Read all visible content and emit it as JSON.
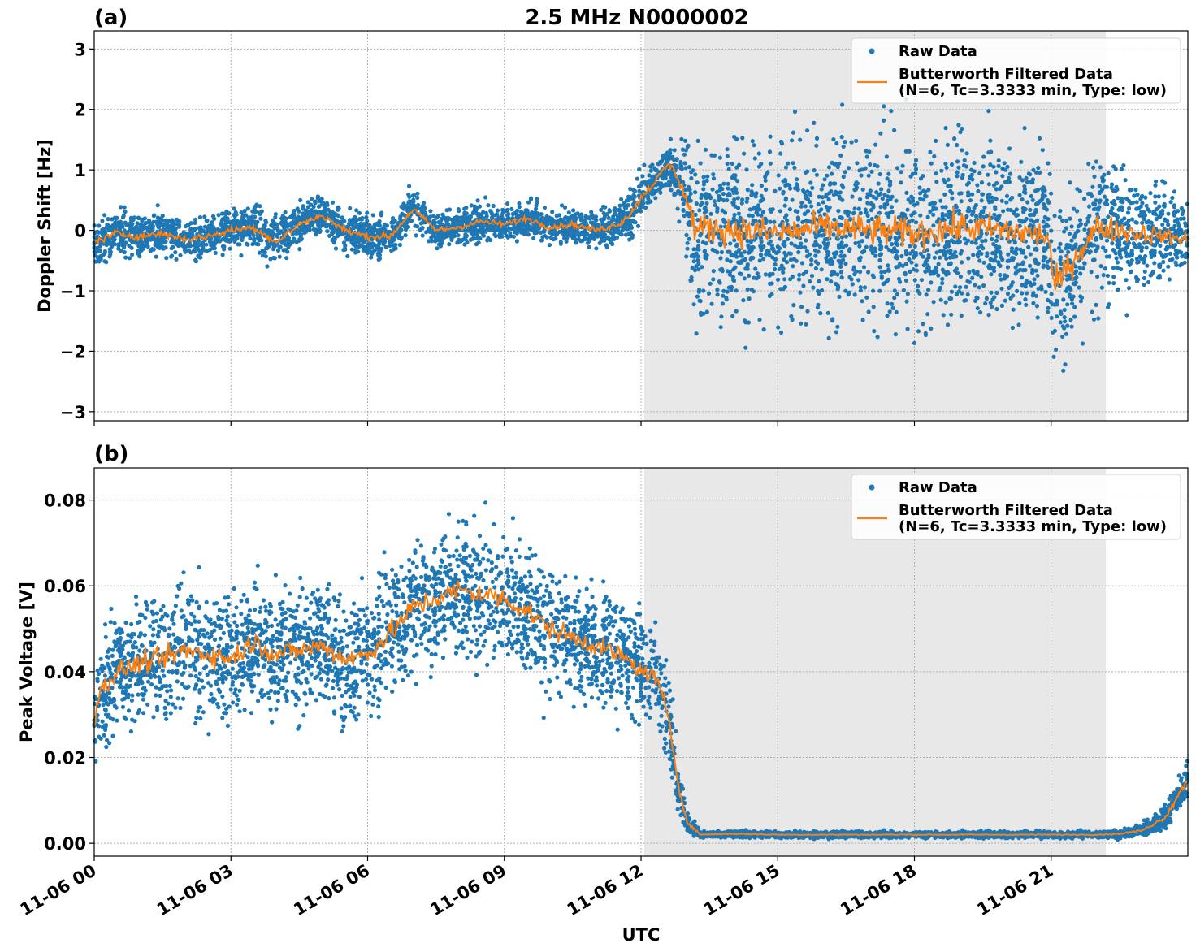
{
  "figure_title": "2.5 MHz N0000002",
  "xlabel": "UTC",
  "x_tick_labels": [
    "11-06 00",
    "11-06 03",
    "11-06 06",
    "11-06 09",
    "11-06 12",
    "11-06 15",
    "11-06 18",
    "11-06 21"
  ],
  "colors": {
    "raw": "#1f77b4",
    "filtered": "#ff7f0e",
    "shade": "#e8e8e8",
    "grid": "#b0b0b0"
  },
  "chart_data": [
    {
      "panel_label": "(a)",
      "type": "scatter",
      "ylabel": "Doppler Shift [Hz]",
      "xlim_hours_utc": [
        0,
        24
      ],
      "ylim": [
        -3.15,
        3.3
      ],
      "yticks": [
        3,
        2,
        1,
        0,
        -1,
        -2,
        -3
      ],
      "ytick_labels": [
        "3",
        "2",
        "1",
        "0",
        "−1",
        "−2",
        "−3"
      ],
      "shaded_interval_hours_utc": [
        12.07,
        22.2
      ],
      "grid": true,
      "legend": {
        "placement": "top-right",
        "raw_label": "Raw Data",
        "filtered_label_line1": "Butterworth Filtered Data",
        "filtered_label_line2": "(N=6, Tc=3.3333 min, Type: low)"
      },
      "series": [
        {
          "name": "Butterworth Filtered Data",
          "kind": "line",
          "x_hours_utc": [
            0,
            0.5,
            1,
            1.5,
            2,
            2.5,
            3,
            3.5,
            4,
            4.5,
            5,
            5.5,
            6,
            6.5,
            7,
            7.5,
            8,
            8.5,
            9,
            9.5,
            10,
            10.5,
            11,
            11.5,
            11.8,
            12,
            12.3,
            12.6,
            12.8,
            13,
            13.2,
            13.5,
            14,
            15,
            16,
            17,
            18,
            19,
            20,
            20.95,
            21.05,
            22,
            23,
            24
          ],
          "y": [
            -0.2,
            -0.05,
            -0.1,
            -0.05,
            -0.15,
            -0.1,
            0.0,
            0.05,
            -0.2,
            0.1,
            0.25,
            0.0,
            -0.1,
            -0.1,
            0.35,
            0.0,
            0.05,
            0.15,
            0.1,
            0.2,
            0.05,
            0.1,
            0.0,
            0.1,
            0.3,
            0.55,
            0.8,
            1.1,
            0.9,
            0.5,
            0.0,
            0.05,
            0.0,
            -0.05,
            0.05,
            0.0,
            -0.05,
            0.05,
            0.0,
            -0.1,
            -0.95,
            0.05,
            -0.05,
            -0.15
          ]
        },
        {
          "name": "Raw Data",
          "kind": "points",
          "x_hours_utc": [
            0,
            0.5,
            1,
            1.5,
            2,
            2.5,
            3,
            3.5,
            4,
            4.5,
            5,
            5.5,
            6,
            6.5,
            7,
            7.5,
            8,
            8.5,
            9,
            9.5,
            10,
            10.5,
            11,
            11.5,
            11.8,
            12,
            12.3,
            12.6,
            12.8,
            13,
            13.2,
            13.5,
            14,
            15,
            16,
            17,
            18,
            19,
            20,
            21,
            22,
            23,
            24
          ],
          "y_spread_hz": [
            0.35,
            0.4,
            0.4,
            0.35,
            0.35,
            0.35,
            0.35,
            0.4,
            0.4,
            0.35,
            0.35,
            0.35,
            0.35,
            0.35,
            0.35,
            0.3,
            0.3,
            0.3,
            0.3,
            0.3,
            0.3,
            0.3,
            0.3,
            0.35,
            0.4,
            0.4,
            0.35,
            0.35,
            0.6,
            1.2,
            1.5,
            1.6,
            1.6,
            1.6,
            1.6,
            1.6,
            1.6,
            1.6,
            1.6,
            1.5,
            1.4,
            1.1,
            0.6
          ]
        }
      ]
    },
    {
      "panel_label": "(b)",
      "type": "scatter",
      "ylabel": "Peak Voltage [V]",
      "xlim_hours_utc": [
        0,
        24
      ],
      "ylim": [
        -0.003,
        0.0875
      ],
      "yticks": [
        0.08,
        0.06,
        0.04,
        0.02,
        0.0
      ],
      "ytick_labels": [
        "0.08",
        "0.06",
        "0.04",
        "0.02",
        "0.00"
      ],
      "shaded_interval_hours_utc": [
        12.07,
        22.2
      ],
      "grid": true,
      "legend": {
        "placement": "top-right",
        "raw_label": "Raw Data",
        "filtered_label_line1": "Butterworth Filtered Data",
        "filtered_label_line2": "(N=6, Tc=3.3333 min, Type: low)"
      },
      "series": [
        {
          "name": "Butterworth Filtered Data",
          "kind": "line",
          "x_hours_utc": [
            0,
            0.1,
            0.5,
            1,
            1.5,
            2,
            2.5,
            3,
            3.5,
            4,
            4.5,
            5,
            5.5,
            6,
            6.5,
            7,
            7.5,
            8,
            8.5,
            9,
            9.5,
            10,
            10.5,
            11,
            11.5,
            11.8,
            12,
            12.3,
            12.6,
            12.8,
            13,
            13.3,
            14,
            15,
            16,
            17,
            18,
            19,
            20,
            21,
            22,
            22.5,
            23,
            23.5,
            24
          ],
          "y": [
            0.028,
            0.035,
            0.04,
            0.042,
            0.043,
            0.045,
            0.044,
            0.043,
            0.047,
            0.044,
            0.045,
            0.046,
            0.043,
            0.044,
            0.049,
            0.055,
            0.057,
            0.059,
            0.058,
            0.057,
            0.054,
            0.05,
            0.048,
            0.046,
            0.044,
            0.042,
            0.04,
            0.039,
            0.03,
            0.015,
            0.005,
            0.002,
            0.0022,
            0.002,
            0.002,
            0.002,
            0.002,
            0.002,
            0.002,
            0.002,
            0.002,
            0.0022,
            0.003,
            0.006,
            0.015
          ]
        },
        {
          "name": "Raw Data",
          "kind": "points",
          "x_hours_utc": [
            0,
            0.5,
            1,
            1.5,
            2,
            2.5,
            3,
            3.5,
            4,
            4.5,
            5,
            5.5,
            6,
            6.5,
            7,
            7.5,
            8,
            8.5,
            9,
            9.5,
            10,
            10.5,
            11,
            11.5,
            11.8,
            12,
            12.3,
            12.6,
            12.8,
            13,
            13.3,
            14,
            15,
            16,
            17,
            18,
            19,
            20,
            21,
            22,
            22.5,
            23,
            23.5,
            24
          ],
          "y_spread_v": [
            0.012,
            0.015,
            0.016,
            0.016,
            0.016,
            0.016,
            0.016,
            0.016,
            0.016,
            0.015,
            0.015,
            0.015,
            0.015,
            0.016,
            0.016,
            0.016,
            0.016,
            0.016,
            0.016,
            0.016,
            0.015,
            0.015,
            0.014,
            0.014,
            0.013,
            0.012,
            0.011,
            0.01,
            0.008,
            0.003,
            0.0008,
            0.0008,
            0.0008,
            0.0008,
            0.0008,
            0.0008,
            0.0008,
            0.0008,
            0.0008,
            0.0008,
            0.001,
            0.0015,
            0.003,
            0.006
          ]
        }
      ]
    }
  ]
}
